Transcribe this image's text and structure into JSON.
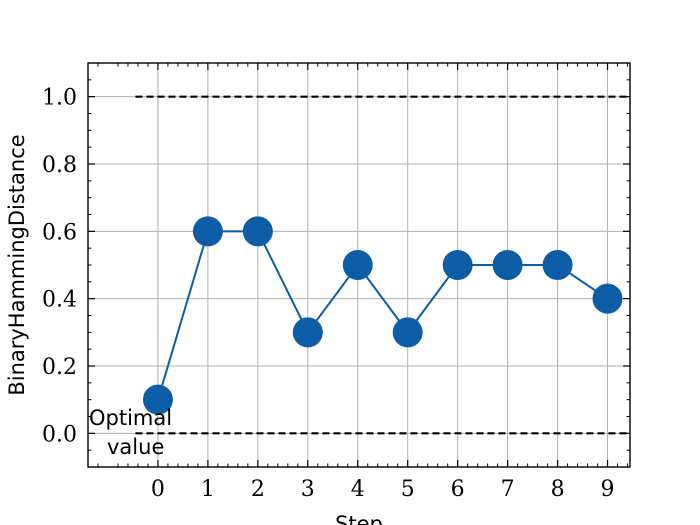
{
  "chart_data": {
    "type": "line",
    "title": "",
    "xlabel": "Step",
    "ylabel": "BinaryHammingDistance",
    "x": [
      0,
      1,
      2,
      3,
      4,
      5,
      6,
      7,
      8,
      9
    ],
    "series": [
      {
        "values": [
          0.1,
          0.6,
          0.6,
          0.3,
          0.5,
          0.3,
          0.5,
          0.5,
          0.5,
          0.4
        ],
        "color": "#0c5da5"
      }
    ],
    "xlim": [
      -1.4,
      9.45
    ],
    "ylim": [
      -0.1,
      1.1
    ],
    "xticks": [
      "0",
      "1",
      "2",
      "3",
      "4",
      "5",
      "6",
      "7",
      "8",
      "9"
    ],
    "yticks": [
      "0.0",
      "0.2",
      "0.4",
      "0.6",
      "0.8",
      "1.0"
    ],
    "ytick_values": [
      0.0,
      0.2,
      0.4,
      0.6,
      0.8,
      1.0
    ],
    "reference_lines": [
      {
        "y": 1.0,
        "x_start": -0.45,
        "style": "dashed",
        "color": "#000000"
      },
      {
        "y": 0.0,
        "x_start": -0.45,
        "style": "dashed",
        "color": "#000000"
      }
    ],
    "annotation": {
      "line1": "Optimal",
      "line2": "value"
    },
    "grid": true,
    "legend": "none"
  }
}
